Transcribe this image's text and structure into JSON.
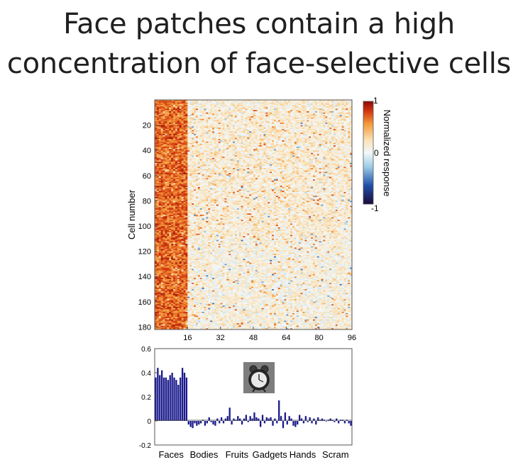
{
  "title": {
    "line1": "Face patches contain a high",
    "line2": "concentration of face-selective cells"
  },
  "chart_data": [
    {
      "type": "heatmap",
      "ylabel": "Cell number",
      "x_ticks": [
        "16",
        "32",
        "48",
        "64",
        "80",
        "96"
      ],
      "y_ticks": [
        "20",
        "40",
        "60",
        "80",
        "100",
        "120",
        "140",
        "160",
        "180"
      ],
      "n_rows": 182,
      "n_cols": 96,
      "xlim": [
        0,
        96
      ],
      "ylim": [
        182,
        0
      ],
      "face_columns": [
        1,
        16
      ],
      "colorbar": {
        "label": "Normalized response",
        "ticks": [
          "1",
          "0",
          "-1"
        ],
        "range": [
          -1,
          1
        ],
        "colormap": [
          "#1a0a3a",
          "#1f4fa8",
          "#9ccbe6",
          "#f3f8fb",
          "#fbe3b8",
          "#f39a3a",
          "#d43a10",
          "#8c0a05"
        ]
      }
    },
    {
      "type": "bar",
      "ylim": [
        -0.2,
        0.6
      ],
      "y_ticks": [
        "0.6",
        "0.4",
        "0.2",
        "0",
        "-0.2"
      ],
      "category_labels": [
        "Faces",
        "Bodies",
        "Fruits",
        "Gadgets",
        "Hands",
        "Scram"
      ],
      "bar_color": "#1a1a8c",
      "values": [
        0.36,
        0.44,
        0.38,
        0.42,
        0.36,
        0.36,
        0.34,
        0.38,
        0.4,
        0.36,
        0.34,
        0.3,
        0.36,
        0.44,
        0.4,
        0.36,
        -0.03,
        -0.05,
        -0.06,
        -0.02,
        -0.04,
        -0.03,
        -0.02,
        0.01,
        -0.04,
        -0.02,
        0.03,
        -0.01,
        -0.03,
        -0.04,
        0.02,
        -0.02,
        0.03,
        -0.02,
        0.02,
        0.04,
        0.11,
        -0.03,
        0.02,
        0.01,
        0.04,
        0.02,
        -0.03,
        0.02,
        0.05,
        -0.01,
        0.04,
        0.02,
        0.07,
        0.03,
        0.02,
        -0.05,
        0.05,
        -0.02,
        0.03,
        0.02,
        0.03,
        -0.04,
        0.02,
        -0.02,
        0.17,
        0.04,
        -0.06,
        0.07,
        -0.03,
        0.04,
        0.02,
        -0.04,
        -0.05,
        -0.03,
        0.05,
        0.02,
        -0.02,
        0.04,
        -0.01,
        0.03,
        -0.02,
        0.02,
        -0.03,
        0.03,
        0.01,
        0.02,
        0.01,
        0.0,
        0.01,
        0.02,
        0.01,
        -0.01,
        0.02,
        -0.02,
        0.01,
        0.01,
        -0.02,
        0.01,
        -0.02,
        -0.04
      ]
    }
  ]
}
